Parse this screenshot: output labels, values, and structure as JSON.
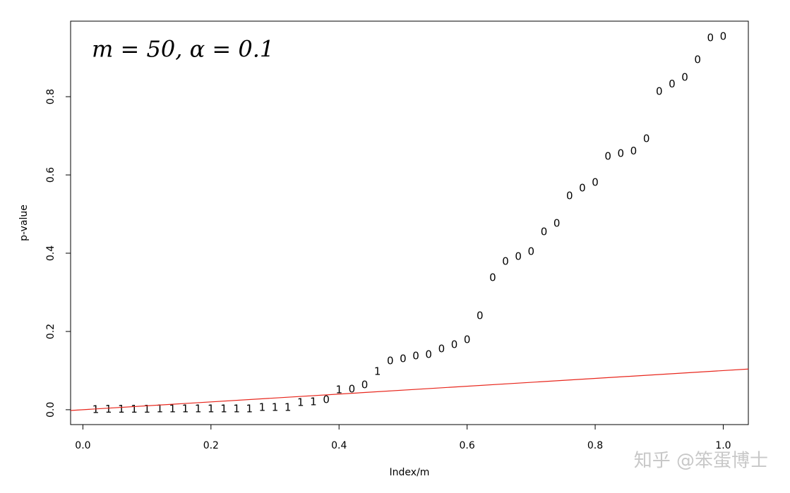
{
  "chart_data": {
    "type": "scatter",
    "title": "m = 50, α = 0.1",
    "x_label": "Index/m",
    "y_label": "p-value",
    "watermark": "知乎 @笨蛋博士",
    "xlim": [
      -0.0192,
      1.0392
    ],
    "ylim": [
      -0.038,
      0.993
    ],
    "xticks": [
      {
        "value": 0,
        "label": "0.0"
      },
      {
        "value": 0.2,
        "label": "0.2"
      },
      {
        "value": 0.4,
        "label": "0.4"
      },
      {
        "value": 0.6,
        "label": "0.6"
      },
      {
        "value": 0.8,
        "label": "0.8"
      },
      {
        "value": 1,
        "label": "1.0"
      }
    ],
    "yticks": [
      {
        "value": 0,
        "label": "0.0"
      },
      {
        "value": 0.2,
        "label": "0.2"
      },
      {
        "value": 0.4,
        "label": "0.4"
      },
      {
        "value": 0.6,
        "label": "0.6"
      },
      {
        "value": 0.8,
        "label": "0.8"
      }
    ],
    "line_slope": 0.1,
    "line_color": "#e8261c",
    "x": [
      0.02,
      0.04,
      0.06,
      0.08,
      0.1,
      0.12,
      0.14,
      0.16,
      0.18,
      0.2,
      0.22,
      0.24,
      0.26,
      0.28,
      0.3,
      0.32,
      0.34,
      0.36,
      0.38,
      0.4,
      0.42,
      0.44,
      0.46,
      0.48,
      0.5,
      0.52,
      0.54,
      0.56,
      0.58,
      0.6,
      0.62,
      0.64,
      0.66,
      0.68,
      0.7,
      0.72,
      0.74,
      0.76,
      0.78,
      0.8,
      0.82,
      0.84,
      0.86,
      0.88,
      0.9,
      0.92,
      0.94,
      0.96,
      0.98,
      1
    ],
    "values": [
      0.0002,
      0.0005,
      0.0008,
      0.001,
      0.001,
      0.0015,
      0.002,
      0.002,
      0.002,
      0.002,
      0.002,
      0.002,
      0.002,
      0.005,
      0.005,
      0.005,
      0.018,
      0.02,
      0.025,
      0.05,
      0.052,
      0.063,
      0.097,
      0.124,
      0.13,
      0.137,
      0.14,
      0.155,
      0.166,
      0.178,
      0.24,
      0.337,
      0.378,
      0.391,
      0.404,
      0.454,
      0.476,
      0.546,
      0.566,
      0.58,
      0.647,
      0.654,
      0.66,
      0.692,
      0.813,
      0.832,
      0.849,
      0.894,
      0.95,
      0.953
    ],
    "markers": [
      "1",
      "1",
      "1",
      "1",
      "1",
      "1",
      "1",
      "1",
      "1",
      "1",
      "1",
      "1",
      "1",
      "1",
      "1",
      "1",
      "1",
      "1",
      "0",
      "1",
      "0",
      "0",
      "1",
      "0",
      "0",
      "0",
      "0",
      "0",
      "0",
      "0",
      "0",
      "0",
      "0",
      "0",
      "0",
      "0",
      "0",
      "0",
      "0",
      "0",
      "0",
      "0",
      "0",
      "0",
      "0",
      "0",
      "0",
      "0",
      "0",
      "0"
    ]
  }
}
